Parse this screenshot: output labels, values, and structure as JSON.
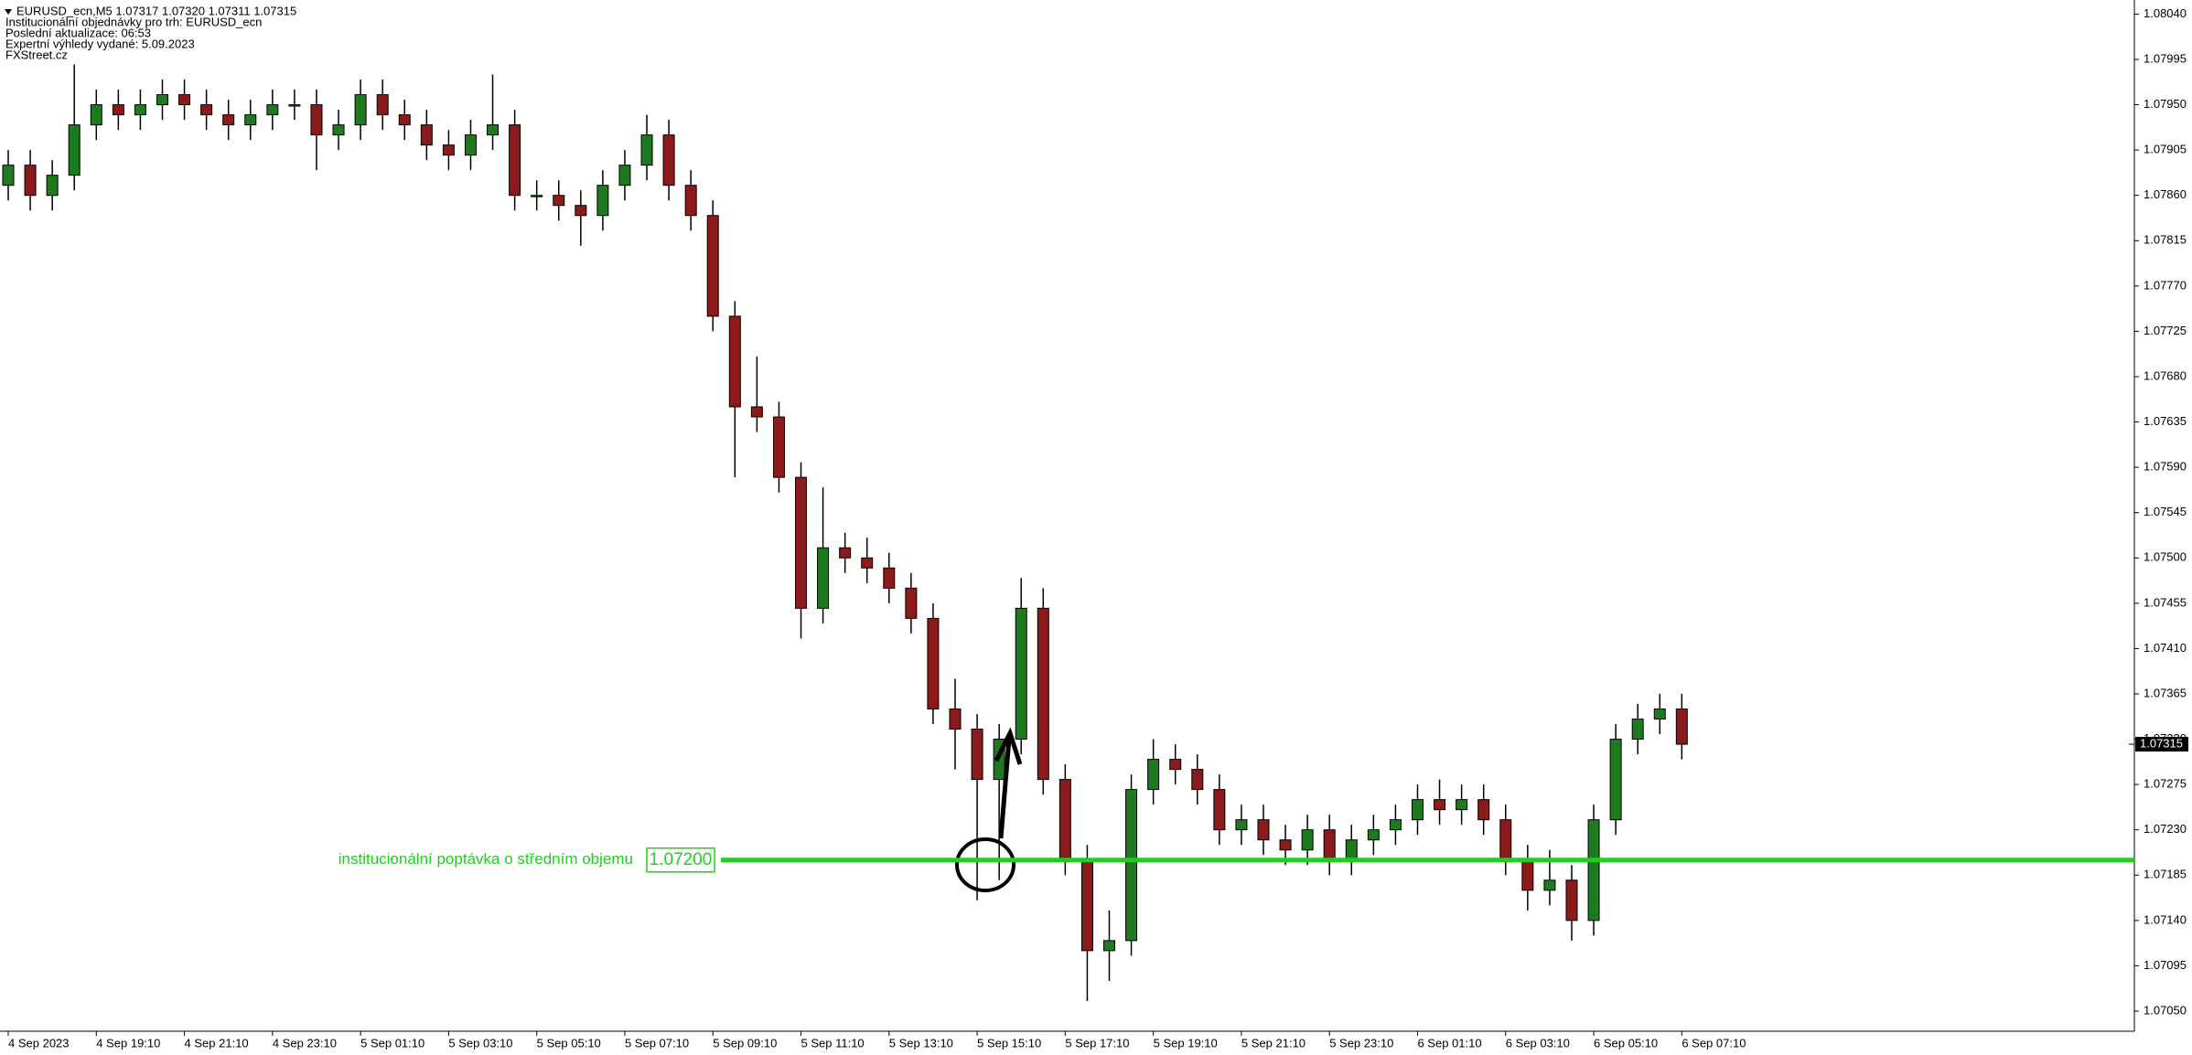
{
  "chart_data": {
    "type": "candlestick",
    "title": "EURUSD_ecn,M5  1.07317 1.07320 1.07311 1.07315",
    "info": [
      "Institucionální objednávky pro trh: EURUSD_ecn",
      "Poslední aktualizace: 06:53",
      "Expertní výhledy vydané: 5.09.2023",
      "FXStreet.cz"
    ],
    "x_labels": [
      "4 Sep 2023",
      "4 Sep 19:10",
      "4 Sep 21:10",
      "4 Sep 23:10",
      "5 Sep 01:10",
      "5 Sep 03:10",
      "5 Sep 05:10",
      "5 Sep 07:10",
      "5 Sep 09:10",
      "5 Sep 11:10",
      "5 Sep 13:10",
      "5 Sep 15:10",
      "5 Sep 17:10",
      "5 Sep 19:10",
      "5 Sep 21:10",
      "5 Sep 23:10",
      "6 Sep 01:10",
      "6 Sep 03:10",
      "6 Sep 05:10",
      "6 Sep 07:10"
    ],
    "open": [
      1.0787,
      1.0789,
      1.0786,
      1.0788,
      1.0793,
      1.0795,
      1.0794,
      1.0795,
      1.0796,
      1.0795,
      1.0794,
      1.0793,
      1.0794,
      1.0795,
      1.0795,
      1.0792,
      1.0793,
      1.0796,
      1.0794,
      1.0793,
      1.0791,
      1.079,
      1.0792,
      1.0793,
      1.0786,
      1.0786,
      1.0785,
      1.0784,
      1.0787,
      1.0789,
      1.0792,
      1.0787,
      1.0784,
      1.0774,
      1.0765,
      1.0764,
      1.0758,
      1.0745,
      1.0751,
      1.075,
      1.0749,
      1.0747,
      1.0744,
      1.0735,
      1.0733,
      1.0728,
      1.0732,
      1.0745,
      1.0728,
      1.072,
      1.0711,
      1.0712,
      1.0727,
      1.073,
      1.0729,
      1.0727,
      1.0723,
      1.0724,
      1.0722,
      1.0721,
      1.0723,
      1.072,
      1.0722,
      1.0723,
      1.0724,
      1.0726,
      1.0725,
      1.0726,
      1.0724,
      1.072,
      1.0717,
      1.0718,
      1.0714,
      1.0724,
      1.0732,
      1.0734,
      1.0735
    ],
    "high": [
      1.07905,
      1.07905,
      1.07895,
      1.0799,
      1.07965,
      1.07965,
      1.07965,
      1.07975,
      1.07975,
      1.07965,
      1.07955,
      1.07955,
      1.07965,
      1.07965,
      1.07965,
      1.07945,
      1.07975,
      1.07975,
      1.07955,
      1.07945,
      1.07925,
      1.07935,
      1.0798,
      1.07945,
      1.07875,
      1.07875,
      1.07865,
      1.07885,
      1.07905,
      1.0794,
      1.07935,
      1.07885,
      1.07855,
      1.07755,
      1.077,
      1.07655,
      1.07595,
      1.0757,
      1.07525,
      1.0752,
      1.07505,
      1.07485,
      1.07455,
      1.0738,
      1.07345,
      1.07335,
      1.0748,
      1.0747,
      1.07295,
      1.07215,
      1.0715,
      1.07285,
      1.0732,
      1.07315,
      1.07305,
      1.07285,
      1.07255,
      1.07255,
      1.07235,
      1.07245,
      1.07245,
      1.07235,
      1.07245,
      1.07255,
      1.07275,
      1.0728,
      1.07275,
      1.07275,
      1.07255,
      1.07215,
      1.0721,
      1.07195,
      1.07255,
      1.07335,
      1.07355,
      1.07365,
      1.07365
    ],
    "low": [
      1.07855,
      1.07845,
      1.07845,
      1.07865,
      1.07915,
      1.07925,
      1.07925,
      1.07935,
      1.07935,
      1.07925,
      1.07915,
      1.07915,
      1.07925,
      1.07935,
      1.07885,
      1.07905,
      1.07915,
      1.07925,
      1.07915,
      1.07895,
      1.07885,
      1.07885,
      1.07905,
      1.07845,
      1.07845,
      1.07835,
      1.0781,
      1.07825,
      1.07855,
      1.07875,
      1.07855,
      1.07825,
      1.07725,
      1.0758,
      1.07625,
      1.07565,
      1.0742,
      1.07435,
      1.07485,
      1.07475,
      1.07455,
      1.07425,
      1.07335,
      1.0729,
      1.0716,
      1.0718,
      1.07305,
      1.07265,
      1.07185,
      1.0706,
      1.0708,
      1.07105,
      1.07255,
      1.07275,
      1.07255,
      1.07215,
      1.07215,
      1.07205,
      1.07195,
      1.07195,
      1.07185,
      1.07185,
      1.07205,
      1.07215,
      1.07225,
      1.07235,
      1.07235,
      1.07225,
      1.07185,
      1.0715,
      1.07155,
      1.0712,
      1.07125,
      1.07225,
      1.07305,
      1.07325,
      1.073
    ],
    "close": [
      1.0789,
      1.0786,
      1.0788,
      1.0793,
      1.0795,
      1.0794,
      1.0795,
      1.0796,
      1.0795,
      1.0794,
      1.0793,
      1.0794,
      1.0795,
      1.0795,
      1.0792,
      1.0793,
      1.0796,
      1.0794,
      1.0793,
      1.0791,
      1.079,
      1.0792,
      1.0793,
      1.0786,
      1.0786,
      1.0785,
      1.0784,
      1.0787,
      1.0789,
      1.0792,
      1.0787,
      1.0784,
      1.0774,
      1.0765,
      1.0764,
      1.0758,
      1.0745,
      1.0751,
      1.075,
      1.0749,
      1.0747,
      1.0744,
      1.0735,
      1.0733,
      1.0728,
      1.0732,
      1.0745,
      1.0728,
      1.072,
      1.0711,
      1.0712,
      1.0727,
      1.073,
      1.0729,
      1.0727,
      1.0723,
      1.0724,
      1.0722,
      1.0721,
      1.0723,
      1.072,
      1.0722,
      1.0723,
      1.0724,
      1.0726,
      1.0725,
      1.0726,
      1.0724,
      1.072,
      1.0717,
      1.0718,
      1.0714,
      1.0724,
      1.0732,
      1.0734,
      1.0735,
      1.07315
    ],
    "up_color": "#1e7a1e",
    "down_color": "#8b1a1a",
    "ylim": [
      1.0703,
      1.08054
    ],
    "yticks": [
      {
        "value": 1.0804,
        "label": "1.08040"
      },
      1.07995,
      {
        "value": 1.0795,
        "label": "1.07950"
      },
      1.07905,
      {
        "value": 1.0786,
        "label": "1.07860"
      },
      1.07815,
      {
        "value": 1.0777,
        "label": "1.07770"
      },
      1.07725,
      {
        "value": 1.0768,
        "label": "1.07680"
      },
      1.07635,
      {
        "value": 1.0759,
        "label": "1.07590"
      },
      1.07545,
      {
        "value": 1.075,
        "label": "1.07500"
      },
      1.07455,
      {
        "value": 1.0741,
        "label": "1.07410"
      },
      1.07365,
      {
        "value": 1.0732,
        "label": "1.07320"
      },
      1.07275,
      {
        "value": 1.0723,
        "label": "1.07230"
      },
      1.07185,
      {
        "value": 1.0714,
        "label": "1.07140"
      },
      1.07095,
      {
        "value": 1.0705,
        "label": "1.07050"
      }
    ],
    "last": 1.07315,
    "level": {
      "value": 1.072,
      "label": "1.07200",
      "text": "institucionální poptávka o středním objemu",
      "color": "#22cc22"
    },
    "grid": false
  }
}
